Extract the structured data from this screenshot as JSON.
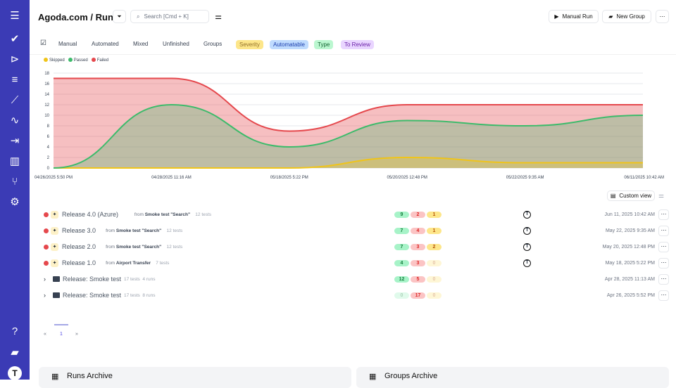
{
  "sidebar": {
    "items": [
      "menu-icon",
      "check-icon",
      "play-icon",
      "checklist-icon",
      "steps-icon",
      "pulse-icon",
      "import-icon",
      "analytics-icon",
      "branch-icon",
      "settings-icon",
      "help-icon",
      "folder-icon",
      "avatar-icon"
    ]
  },
  "header": {
    "project": "Agoda.com",
    "separator": "/",
    "page": "Runs",
    "search_placeholder": "Search [Cmd + K]",
    "manual_run": "Manual Run",
    "new_group": "New Group",
    "more": "⋯"
  },
  "tabs": [
    "Manual",
    "Automated",
    "Mixed",
    "Unfinished",
    "Groups"
  ],
  "tags": [
    {
      "label": "Severity",
      "bg": "#fde68a",
      "fg": "#92702a"
    },
    {
      "label": "Automatable",
      "bg": "#bfdbfe",
      "fg": "#1e40af"
    },
    {
      "label": "Type",
      "bg": "#bbf7d0",
      "fg": "#166534"
    },
    {
      "label": "To Review",
      "bg": "#e9d5ff",
      "fg": "#6b21a8"
    }
  ],
  "chart_data": {
    "type": "area",
    "stacked": true,
    "categories": [
      "04/26/2025 5:50 PM",
      "04/28/2025 11:16 AM",
      "05/18/2025 5:22 PM",
      "05/20/2025 12:48 PM",
      "05/22/2025 9:35 AM",
      "06/11/2025 10:42 AM"
    ],
    "series": [
      {
        "name": "Skipped",
        "color": "#f0c419",
        "values": [
          0,
          0,
          0,
          2,
          1,
          1
        ]
      },
      {
        "name": "Passed",
        "color": "#3dbb6b",
        "values": [
          0,
          12,
          4,
          7,
          7,
          9
        ]
      },
      {
        "name": "Failed",
        "color": "#e5484d",
        "values": [
          17,
          5,
          3,
          3,
          4,
          2
        ]
      }
    ],
    "ylim": [
      0,
      18
    ],
    "yticks": [
      0,
      2,
      4,
      6,
      8,
      10,
      12,
      14,
      16,
      18
    ],
    "grid": true,
    "legend": "top-left"
  },
  "list": {
    "custom_view": "Custom view",
    "rows": [
      {
        "type": "run",
        "title": "Release 4.0 (Azure)",
        "from": "from",
        "source": "Smoke test \"Search\"",
        "meta": "12 tests",
        "passed": "9",
        "failed": "2",
        "skipped": "1",
        "date": "Jun 11, 2025 10:42 AM",
        "user": true
      },
      {
        "type": "run",
        "title": "Release 3.0",
        "from": "from",
        "source": "Smoke test \"Search\"",
        "meta": "12 tests",
        "passed": "7",
        "failed": "4",
        "skipped": "1",
        "date": "May 22, 2025 9:35 AM",
        "user": true
      },
      {
        "type": "run",
        "title": "Release 2.0",
        "from": "from",
        "source": "Smoke test \"Search\"",
        "meta": "12 tests",
        "passed": "7",
        "failed": "3",
        "skipped": "2",
        "date": "May 20, 2025 12:48 PM",
        "user": true
      },
      {
        "type": "run",
        "title": "Release 1.0",
        "from": "from",
        "source": "Airport Transfer",
        "meta": "7 tests",
        "passed": "4",
        "failed": "3",
        "skipped": "0",
        "date": "May 18, 2025 5:22 PM",
        "user": true
      },
      {
        "type": "group",
        "title": "Release: Smoke test",
        "meta": "17 tests",
        "runs": "4 runs",
        "passed": "12",
        "failed": "5",
        "skipped": "0",
        "date": "Apr 28, 2025 11:13 AM"
      },
      {
        "type": "group",
        "title": "Release: Smoke test",
        "meta": "17 tests",
        "runs": "8 runs",
        "passed": "0",
        "failed": "17",
        "skipped": "0",
        "date": "Apr 26, 2025 5:52 PM"
      }
    ]
  },
  "pagination": {
    "prev": "«",
    "page": "1",
    "next": "»"
  },
  "archives": {
    "runs": "Runs Archive",
    "groups": "Groups Archive"
  }
}
